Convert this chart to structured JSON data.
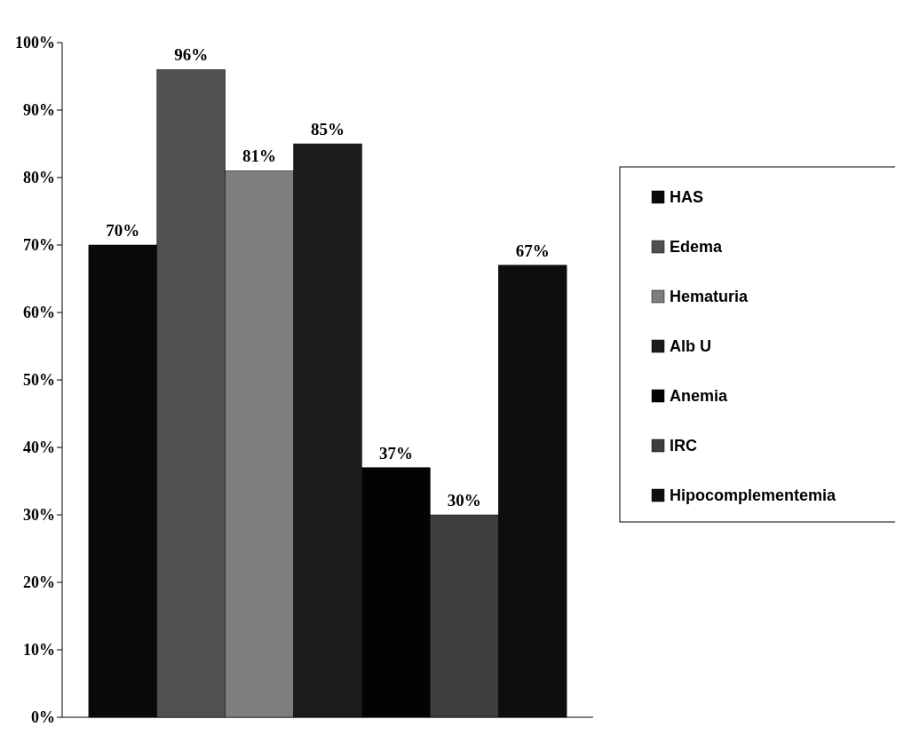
{
  "chart_data": {
    "type": "bar",
    "categories": [
      null
    ],
    "series": [
      {
        "name": "HAS",
        "color": "#0a0a0a",
        "values": [
          70
        ],
        "value_labels": [
          "70%"
        ]
      },
      {
        "name": "Edema",
        "color": "#505050",
        "values": [
          96
        ],
        "value_labels": [
          "96%"
        ]
      },
      {
        "name": "Hematuria",
        "color": "#7e7e7e",
        "values": [
          81
        ],
        "value_labels": [
          "81%"
        ]
      },
      {
        "name": "Alb U",
        "color": "#1c1c1c",
        "values": [
          85
        ],
        "value_labels": [
          "85%"
        ]
      },
      {
        "name": "Anemia",
        "color": "#030303",
        "values": [
          37
        ],
        "value_labels": [
          "37%"
        ]
      },
      {
        "name": "IRC",
        "color": "#3e3e3e",
        "values": [
          30
        ],
        "value_labels": [
          "30%"
        ]
      },
      {
        "name": "Hipocomplementemia",
        "color": "#0e0e0e",
        "values": [
          67
        ],
        "value_labels": [
          "67%"
        ]
      }
    ],
    "ylim": [
      0,
      100
    ],
    "yticks": [
      {
        "value": 0,
        "label": "0%"
      },
      {
        "value": 10,
        "label": "10%"
      },
      {
        "value": 20,
        "label": "20%"
      },
      {
        "value": 30,
        "label": "30%"
      },
      {
        "value": 40,
        "label": "40%"
      },
      {
        "value": 50,
        "label": "50%"
      },
      {
        "value": 60,
        "label": "60%"
      },
      {
        "value": 70,
        "label": "70%"
      },
      {
        "value": 80,
        "label": "80%"
      },
      {
        "value": 90,
        "label": "90%"
      },
      {
        "value": 100,
        "label": "100%"
      }
    ],
    "legend": "right"
  }
}
